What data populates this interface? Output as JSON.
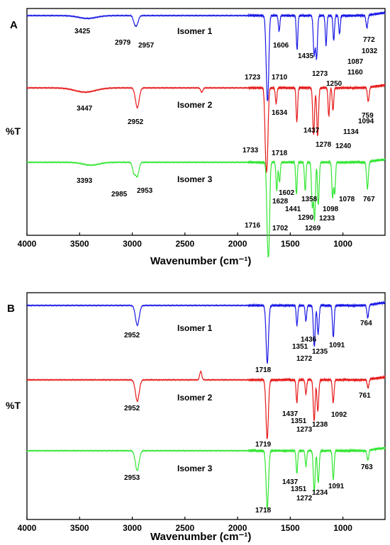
{
  "chart_data": [
    {
      "type": "line",
      "panel_label": "A",
      "xlabel": "Wavenumber (cm⁻¹)",
      "ylabel": "%T",
      "xlim": [
        4000,
        600
      ],
      "xticks": [
        "4000",
        "3500",
        "3000",
        "2500",
        "2000",
        "1500",
        "1000"
      ],
      "grid": false,
      "series": [
        {
          "name": "Isomer 1",
          "color": "#1a1ae6",
          "peak_labels": [
            "3425",
            "2979",
            "2957",
            "1723",
            "1710",
            "1606",
            "1435",
            "1273",
            "1250",
            "1160",
            "1087",
            "1032",
            "772"
          ],
          "baseline": 22,
          "peaks": [
            {
              "x": 3425,
              "depth": 4,
              "width": 120
            },
            {
              "x": 2979,
              "depth": 8,
              "width": 18
            },
            {
              "x": 2957,
              "depth": 12,
              "width": 22
            },
            {
              "x": 1723,
              "depth": 72,
              "width": 14
            },
            {
              "x": 1710,
              "depth": 80,
              "width": 13
            },
            {
              "x": 1606,
              "depth": 22,
              "width": 10
            },
            {
              "x": 1435,
              "depth": 48,
              "width": 10
            },
            {
              "x": 1273,
              "depth": 55,
              "width": 12
            },
            {
              "x": 1250,
              "depth": 60,
              "width": 12
            },
            {
              "x": 1160,
              "depth": 42,
              "width": 10
            },
            {
              "x": 1087,
              "depth": 35,
              "width": 10
            },
            {
              "x": 1032,
              "depth": 26,
              "width": 10
            },
            {
              "x": 772,
              "depth": 18,
              "width": 12
            }
          ]
        },
        {
          "name": "Isomer 2",
          "color": "#e61a1a",
          "peak_labels": [
            "3447",
            "2952",
            "1733",
            "1718",
            "1634",
            "1437",
            "1278",
            "1240",
            "1134",
            "1094",
            "759"
          ],
          "baseline": 124,
          "peaks": [
            {
              "x": 3447,
              "depth": 6,
              "width": 140
            },
            {
              "x": 2952,
              "depth": 28,
              "width": 25
            },
            {
              "x": 2340,
              "depth": 6,
              "width": 15
            },
            {
              "x": 1733,
              "depth": 80,
              "width": 13
            },
            {
              "x": 1718,
              "depth": 85,
              "width": 13
            },
            {
              "x": 1634,
              "depth": 22,
              "width": 10
            },
            {
              "x": 1437,
              "depth": 48,
              "width": 10
            },
            {
              "x": 1278,
              "depth": 65,
              "width": 12
            },
            {
              "x": 1240,
              "depth": 68,
              "width": 12
            },
            {
              "x": 1134,
              "depth": 40,
              "width": 10
            },
            {
              "x": 1094,
              "depth": 32,
              "width": 10
            },
            {
              "x": 759,
              "depth": 20,
              "width": 12
            }
          ]
        },
        {
          "name": "Isomer 3",
          "color": "#33e633",
          "peak_labels": [
            "3393",
            "2985",
            "2953",
            "1716",
            "1702",
            "1628",
            "1602",
            "1441",
            "1358",
            "1290",
            "1269",
            "1233",
            "1098",
            "1078",
            "767"
          ],
          "baseline": 229,
          "peaks": [
            {
              "x": 3393,
              "depth": 4,
              "width": 110
            },
            {
              "x": 2985,
              "depth": 14,
              "width": 18
            },
            {
              "x": 2953,
              "depth": 20,
              "width": 22
            },
            {
              "x": 1716,
              "depth": 88,
              "width": 13
            },
            {
              "x": 1702,
              "depth": 95,
              "width": 12
            },
            {
              "x": 1628,
              "depth": 40,
              "width": 10
            },
            {
              "x": 1602,
              "depth": 28,
              "width": 10
            },
            {
              "x": 1441,
              "depth": 45,
              "width": 10
            },
            {
              "x": 1358,
              "depth": 40,
              "width": 10
            },
            {
              "x": 1290,
              "depth": 62,
              "width": 11
            },
            {
              "x": 1269,
              "depth": 80,
              "width": 11
            },
            {
              "x": 1233,
              "depth": 60,
              "width": 11
            },
            {
              "x": 1098,
              "depth": 50,
              "width": 10
            },
            {
              "x": 1078,
              "depth": 45,
              "width": 10
            },
            {
              "x": 767,
              "depth": 38,
              "width": 12
            }
          ]
        }
      ]
    },
    {
      "type": "line",
      "panel_label": "B",
      "xlabel": "Wavenumber (cm⁻¹)",
      "ylabel": "%T",
      "xlim": [
        4000,
        600
      ],
      "xticks": [
        "4000",
        "3500",
        "3000",
        "2500",
        "2000",
        "1500",
        "1000"
      ],
      "grid": false,
      "series": [
        {
          "name": "Isomer 1",
          "color": "#1a1ae6",
          "peak_labels": [
            "2952",
            "1718",
            "1436",
            "1351",
            "1272",
            "1235",
            "1091",
            "764"
          ],
          "baseline": 431,
          "peaks": [
            {
              "x": 2952,
              "depth": 28,
              "width": 25
            },
            {
              "x": 1718,
              "depth": 82,
              "width": 16
            },
            {
              "x": 1436,
              "depth": 28,
              "width": 10
            },
            {
              "x": 1351,
              "depth": 22,
              "width": 10
            },
            {
              "x": 1272,
              "depth": 58,
              "width": 12
            },
            {
              "x": 1235,
              "depth": 40,
              "width": 12
            },
            {
              "x": 1091,
              "depth": 45,
              "width": 11
            },
            {
              "x": 764,
              "depth": 18,
              "width": 12
            }
          ]
        },
        {
          "name": "Isomer 2",
          "color": "#e61a1a",
          "peak_labels": [
            "2952",
            "1719",
            "1437",
            "1351",
            "1273",
            "1238",
            "1092",
            "761"
          ],
          "baseline": 536,
          "peaks": [
            {
              "x": 2952,
              "depth": 30,
              "width": 25
            },
            {
              "x": 2350,
              "depth": -12,
              "width": 14
            },
            {
              "x": 1719,
              "depth": 84,
              "width": 16
            },
            {
              "x": 1437,
              "depth": 32,
              "width": 10
            },
            {
              "x": 1351,
              "depth": 20,
              "width": 10
            },
            {
              "x": 1273,
              "depth": 58,
              "width": 12
            },
            {
              "x": 1238,
              "depth": 44,
              "width": 12
            },
            {
              "x": 1092,
              "depth": 32,
              "width": 11
            },
            {
              "x": 761,
              "depth": 12,
              "width": 12
            }
          ]
        },
        {
          "name": "Isomer 3",
          "color": "#33e633",
          "peak_labels": [
            "2953",
            "1718",
            "1437",
            "1351",
            "1272",
            "1234",
            "1091",
            "763"
          ],
          "baseline": 636,
          "peaks": [
            {
              "x": 2953,
              "depth": 28,
              "width": 25
            },
            {
              "x": 1718,
              "depth": 82,
              "width": 16
            },
            {
              "x": 1437,
              "depth": 32,
              "width": 10
            },
            {
              "x": 1351,
              "depth": 22,
              "width": 10
            },
            {
              "x": 1272,
              "depth": 58,
              "width": 12
            },
            {
              "x": 1234,
              "depth": 45,
              "width": 12
            },
            {
              "x": 1091,
              "depth": 40,
              "width": 11
            },
            {
              "x": 763,
              "depth": 14,
              "width": 12
            }
          ]
        }
      ]
    }
  ]
}
